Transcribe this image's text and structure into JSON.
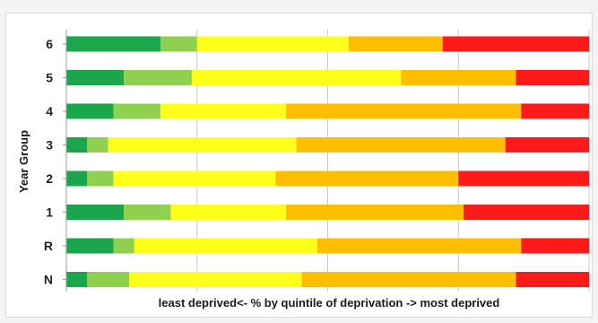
{
  "chart_data": {
    "type": "bar",
    "orientation": "horizontal",
    "stacked": true,
    "normalized_percent": true,
    "xlabel": "least deprived<-  % by quintile of deprivation -> most deprived",
    "ylabel": "Year Group",
    "xlim": [
      0,
      100
    ],
    "grid": "vertical",
    "categories": [
      "6",
      "5",
      "4",
      "3",
      "2",
      "1",
      "R",
      "N"
    ],
    "series": [
      {
        "color": "#1aa64a",
        "values": [
          18,
          11,
          9,
          4,
          4,
          11,
          9,
          4
        ]
      },
      {
        "color": "#8fd14f",
        "values": [
          7,
          13,
          9,
          4,
          5,
          9,
          4,
          8
        ]
      },
      {
        "color": "#ffff1a",
        "values": [
          29,
          40,
          24,
          36,
          31,
          22,
          35,
          33
        ]
      },
      {
        "color": "#ffbf00",
        "values": [
          18,
          22,
          45,
          40,
          35,
          34,
          39,
          41
        ]
      },
      {
        "color": "#ff1a1a",
        "values": [
          28,
          14,
          13,
          16,
          25,
          24,
          13,
          14
        ]
      }
    ]
  }
}
